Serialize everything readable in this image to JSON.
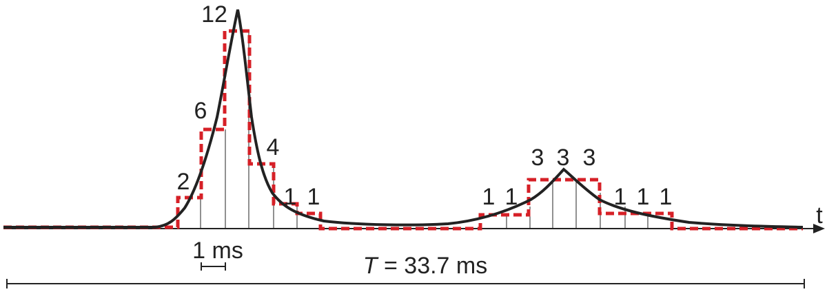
{
  "bin_labels": [
    "12",
    "6",
    "2",
    "4",
    "1",
    "1",
    "1",
    "1",
    "3",
    "3",
    "3",
    "1",
    "1",
    "1"
  ],
  "axis_label": "t",
  "scale_bar_label": "1 ms",
  "period": {
    "symbol": "T",
    "text": "= 33.7 ms"
  }
}
